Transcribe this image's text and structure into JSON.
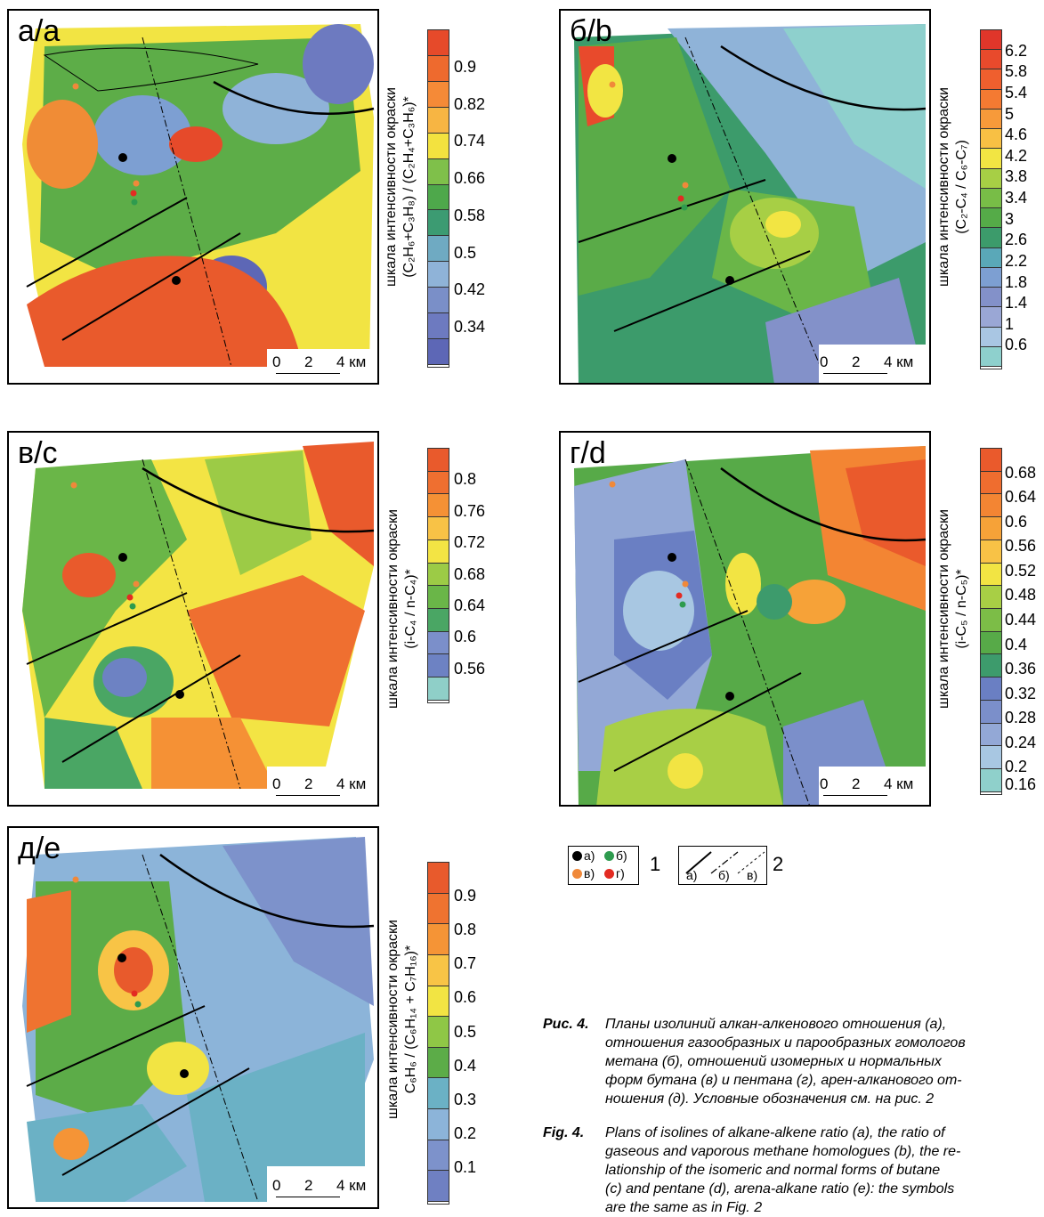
{
  "panels": [
    {
      "label": "а/а",
      "scale": {
        "ticks": [
          "0",
          "2",
          "4 км"
        ]
      },
      "colorbar": {
        "title_line1": "шкала интенсивности окраски",
        "title_line2": "(C₂H₆+C₃H₈) / (C₂H₄+C₃H₆)*",
        "ticks": [
          "0.9",
          "0.82",
          "0.74",
          "0.66",
          "0.58",
          "0.5",
          "0.42",
          "0.34"
        ],
        "colors": [
          "#e64a2a",
          "#ee6a2e",
          "#f58a37",
          "#f7b543",
          "#f3e23f",
          "#7fc04a",
          "#4ea84b",
          "#3c9b72",
          "#6faac2",
          "#8fb3d8",
          "#7a8fc8",
          "#6d7ac0",
          "#5d67b6"
        ]
      }
    },
    {
      "label": "б/b",
      "scale": {
        "ticks": [
          "0",
          "2",
          "4 км"
        ]
      },
      "colorbar": {
        "title_line1": "шкала интенсивности окраски",
        "title_line2": "(C₂-C₄ / C₆-C₇)",
        "ticks": [
          "6.2",
          "5.8",
          "5.4",
          "5",
          "4.6",
          "4.2",
          "3.8",
          "3.4",
          "3",
          "2.6",
          "2.2",
          "1.8",
          "1.4",
          "1",
          "0.6"
        ],
        "colors": [
          "#e0362a",
          "#e84a2c",
          "#ef5f2e",
          "#f47a32",
          "#f79a3a",
          "#f8c044",
          "#f2e543",
          "#a7cf45",
          "#78bd47",
          "#55ab48",
          "#3c9b6b",
          "#5aa8b8",
          "#7d9fd2",
          "#8391c9",
          "#9aa7d5",
          "#a9c6e3",
          "#8ed0cd"
        ]
      }
    },
    {
      "label": "в/c",
      "scale": {
        "ticks": [
          "0",
          "2",
          "4 км"
        ]
      },
      "colorbar": {
        "title_line1": "шкала интенсивности окраски",
        "title_line2": "(i-C₄ / n-C₄)*",
        "ticks": [
          "0.8",
          "0.76",
          "0.72",
          "0.68",
          "0.64",
          "0.6",
          "0.56"
        ],
        "colors": [
          "#e95a2c",
          "#ef6f30",
          "#f59135",
          "#f8c246",
          "#f3e444",
          "#9ccb46",
          "#6ab648",
          "#4aa664",
          "#7b8fca",
          "#6d82c3",
          "#8fcfc8"
        ]
      }
    },
    {
      "label": "г/d",
      "scale": {
        "ticks": [
          "0",
          "2",
          "4 км"
        ]
      },
      "colorbar": {
        "title_line1": "шкала интенсивности окраски",
        "title_line2": "(i-C₅ / n-C₅)*",
        "ticks": [
          "0.68",
          "0.64",
          "0.6",
          "0.56",
          "0.52",
          "0.48",
          "0.44",
          "0.4",
          "0.36",
          "0.32",
          "0.28",
          "0.24",
          "0.2",
          "0.16"
        ],
        "colors": [
          "#ea5a2c",
          "#ef6d2f",
          "#f38533",
          "#f6a238",
          "#f8c246",
          "#f2e443",
          "#a8cf45",
          "#7cbd47",
          "#57aa48",
          "#3d9b6c",
          "#6a7fc3",
          "#7b8fca",
          "#93a8d6",
          "#a8c7e2",
          "#8fd0cb"
        ]
      }
    },
    {
      "label": "д/e",
      "scale": {
        "ticks": [
          "0",
          "2",
          "4 км"
        ]
      },
      "colorbar": {
        "title_line1": "шкала интенсивности окраски",
        "title_line2": "C₆H₆ / (C₆H₁₄ + C₇H₁₆)*",
        "ticks": [
          "0.9",
          "0.8",
          "0.7",
          "0.6",
          "0.5",
          "0.4",
          "0.3",
          "0.2",
          "0.1"
        ],
        "colors": [
          "#e85a2c",
          "#ef7330",
          "#f59436",
          "#f8c446",
          "#f2e443",
          "#8fc746",
          "#5cac48",
          "#6bb1c5",
          "#8cb4d9",
          "#7d92cb",
          "#6f80c2"
        ]
      }
    }
  ],
  "legend": {
    "points": {
      "a": "а)",
      "b": "б)",
      "v": "в)",
      "g": "г)",
      "number": "1",
      "colors": {
        "a": "#000000",
        "b": "#2e9b4e",
        "v": "#f0893a",
        "g": "#e32b22"
      }
    },
    "lines": {
      "a": "а)",
      "b": "б)",
      "v": "в)",
      "number": "2"
    }
  },
  "caption": {
    "ru_label": "Рис. 4.",
    "ru_lines": [
      "Планы изолиний алкан-алкенового отношения (а),",
      "отношения газообразных и парообразных гомологов",
      "метана (б), отношений изомерных и нормальных",
      "форм бутана (в) и пентана (г), арен-алканового от-",
      "ношения (д). Условные обозначения см. на рис. 2"
    ],
    "en_label": "Fig. 4.",
    "en_lines": [
      "Plans of isolines of alkane-alkene ratio (a), the ratio of",
      "gaseous and vaporous methane homologues (b), the re-",
      "lationship of the isomeric and normal forms of butane",
      "(c) and pentane (d), arena-alkane ratio (e): the symbols",
      "are the same as in Fig. 2"
    ]
  }
}
